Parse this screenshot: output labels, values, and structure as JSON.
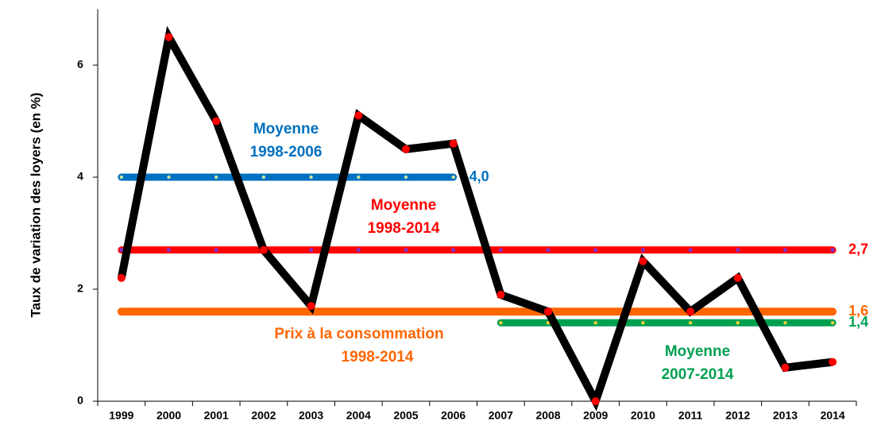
{
  "chart_data": {
    "type": "line",
    "y_label": "Taux de variation des loyers  (en %)",
    "categories": [
      "1999",
      "2000",
      "2001",
      "2002",
      "2003",
      "2004",
      "2005",
      "2006",
      "2007",
      "2008",
      "2009",
      "2010",
      "2011",
      "2012",
      "2013",
      "2014"
    ],
    "ylim": [
      0,
      7
    ],
    "yticks": [
      0,
      2,
      4,
      6
    ],
    "series": [
      {
        "color": "#000000",
        "values": [
          2.2,
          6.5,
          5.0,
          2.7,
          1.7,
          5.1,
          4.5,
          4.6,
          1.9,
          1.6,
          0,
          2.5,
          1.6,
          2.2,
          0.6,
          0.7
        ]
      },
      {
        "color": "#0070c0",
        "annotation": [
          "Moyenne",
          "1998-2006"
        ],
        "value_label": "4,0",
        "values": [
          4.0,
          4.0,
          4.0,
          4.0,
          4.0,
          4.0,
          4.0,
          4.0,
          null,
          null,
          null,
          null,
          null,
          null,
          null,
          null
        ]
      },
      {
        "color": "#ff0000",
        "annotation": [
          "Moyenne",
          "1998-2014"
        ],
        "value_label": "2,7",
        "values": [
          2.7,
          2.7,
          2.7,
          2.7,
          2.7,
          2.7,
          2.7,
          2.7,
          2.7,
          2.7,
          2.7,
          2.7,
          2.7,
          2.7,
          2.7,
          2.7
        ]
      },
      {
        "color": "#ff6600",
        "annotation": [
          "Prix à la consommation",
          "1998-2014"
        ],
        "value_label": "1,6",
        "values": [
          1.6,
          1.6,
          1.6,
          1.6,
          1.6,
          1.6,
          1.6,
          1.6,
          1.6,
          1.6,
          1.6,
          1.6,
          1.6,
          1.6,
          1.6,
          1.6
        ]
      },
      {
        "color": "#00a050",
        "annotation": [
          "Moyenne",
          "2007-2014"
        ],
        "value_label": "1,4",
        "values": [
          null,
          null,
          null,
          null,
          null,
          null,
          null,
          null,
          1.4,
          1.4,
          1.4,
          1.4,
          1.4,
          1.4,
          1.4,
          1.4
        ]
      }
    ]
  }
}
